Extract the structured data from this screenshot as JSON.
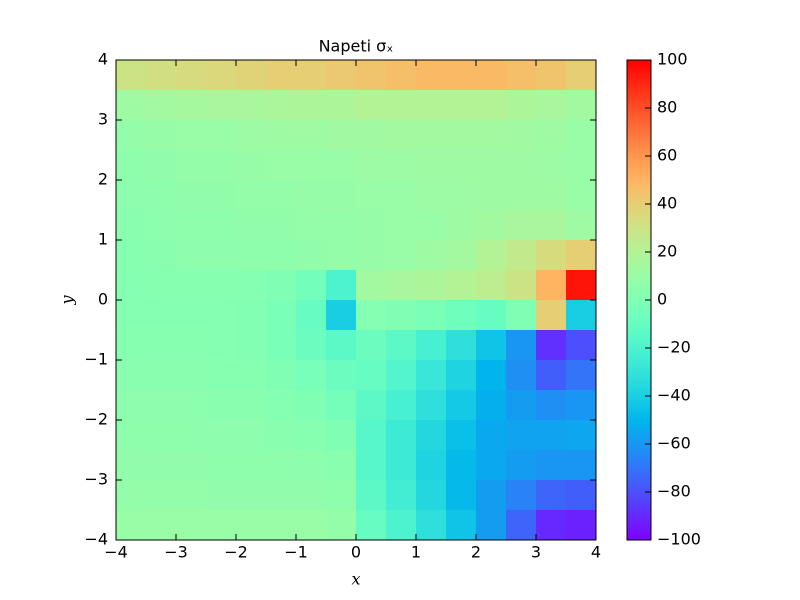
{
  "chart_data": {
    "type": "heatmap",
    "title": "Napeti σₓ",
    "x_label": "x",
    "y_label": "y",
    "colormap": "rainbow",
    "xlim": [
      -4,
      4
    ],
    "ylim": [
      -4,
      4
    ],
    "zlim": [
      -100,
      100
    ],
    "xticks": [
      {
        "value": -4,
        "label": "−4"
      },
      {
        "value": -3,
        "label": "−3"
      },
      {
        "value": -2,
        "label": "−2"
      },
      {
        "value": -1,
        "label": "−1"
      },
      0,
      1,
      2,
      3,
      4
    ],
    "yticks": [
      {
        "value": -4,
        "label": "−4"
      },
      {
        "value": -3,
        "label": "−3"
      },
      {
        "value": -2,
        "label": "−2"
      },
      {
        "value": -1,
        "label": "−1"
      },
      0,
      1,
      2,
      3,
      4
    ],
    "zticks": [
      {
        "value": -100,
        "label": "−100"
      },
      {
        "value": -80,
        "label": "−80"
      },
      {
        "value": -60,
        "label": "−60"
      },
      {
        "value": -40,
        "label": "−40"
      },
      {
        "value": -20,
        "label": "−20"
      },
      0,
      20,
      40,
      60,
      80,
      100
    ],
    "z": [
      [
        30,
        32,
        34,
        36,
        38,
        40,
        40,
        42,
        44,
        46,
        48,
        48,
        48,
        46,
        44,
        40
      ],
      [
        12,
        14,
        15,
        16,
        16,
        17,
        18,
        18,
        20,
        20,
        20,
        20,
        20,
        18,
        16,
        14
      ],
      [
        8,
        9,
        10,
        10,
        11,
        12,
        12,
        13,
        13,
        14,
        14,
        14,
        14,
        13,
        12,
        10
      ],
      [
        6,
        7,
        8,
        8,
        9,
        10,
        10,
        10,
        11,
        11,
        12,
        12,
        12,
        12,
        11,
        10
      ],
      [
        5,
        6,
        7,
        7,
        8,
        8,
        9,
        9,
        10,
        10,
        11,
        11,
        12,
        12,
        12,
        10
      ],
      [
        4,
        5,
        6,
        6,
        7,
        7,
        8,
        8,
        9,
        10,
        10,
        12,
        14,
        16,
        16,
        12
      ],
      [
        3,
        4,
        5,
        5,
        6,
        6,
        7,
        8,
        9,
        10,
        12,
        14,
        20,
        26,
        34,
        40
      ],
      [
        2,
        3,
        3,
        3,
        2,
        0,
        -5,
        -20,
        14,
        16,
        18,
        20,
        24,
        30,
        50,
        95
      ],
      [
        2,
        2,
        2,
        2,
        1,
        -2,
        -10,
        -40,
        2,
        0,
        -2,
        -6,
        -10,
        0,
        40,
        -40
      ],
      [
        3,
        3,
        3,
        2,
        1,
        -2,
        -8,
        -14,
        -8,
        -14,
        -22,
        -32,
        -44,
        -60,
        -88,
        -80
      ],
      [
        4,
        4,
        4,
        3,
        3,
        0,
        -3,
        -8,
        -10,
        -18,
        -28,
        -38,
        -50,
        -62,
        -76,
        -70
      ],
      [
        5,
        5,
        5,
        4,
        4,
        2,
        0,
        -4,
        -14,
        -22,
        -32,
        -42,
        -52,
        -58,
        -62,
        -60
      ],
      [
        6,
        6,
        6,
        5,
        5,
        4,
        3,
        0,
        -16,
        -26,
        -36,
        -46,
        -54,
        -56,
        -56,
        -55
      ],
      [
        7,
        7,
        7,
        6,
        6,
        6,
        5,
        4,
        -16,
        -26,
        -38,
        -48,
        -54,
        -58,
        -60,
        -60
      ],
      [
        8,
        8,
        8,
        7,
        7,
        7,
        7,
        6,
        -14,
        -24,
        -36,
        -48,
        -58,
        -66,
        -74,
        -76
      ],
      [
        10,
        10,
        10,
        10,
        10,
        10,
        10,
        8,
        -10,
        -20,
        -32,
        -44,
        -58,
        -74,
        -90,
        -92
      ]
    ]
  }
}
